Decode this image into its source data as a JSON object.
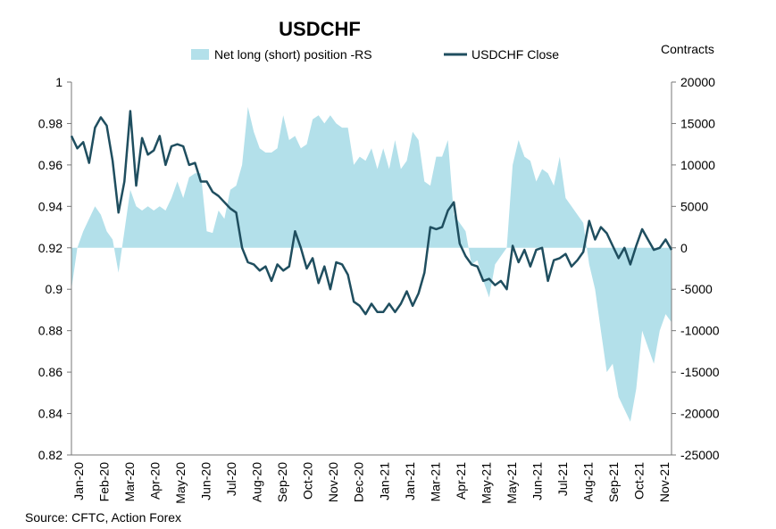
{
  "chart_data": {
    "type": "area+line",
    "title": "USDCHF",
    "right_axis_title": "Contracts",
    "source": "Source: CFTC, Action Forex",
    "legend": {
      "placement": "top",
      "items": [
        {
          "label": "Net long (short) position -RS",
          "type": "area",
          "color": "#b3e0ea"
        },
        {
          "label": "USDCHF Close",
          "type": "line",
          "color": "#1f4e5f"
        }
      ]
    },
    "left_axis": {
      "min": 0.82,
      "max": 1,
      "ticks": [
        "0.82",
        "0.84",
        "0.86",
        "0.88",
        "0.9",
        "0.92",
        "0.94",
        "0.96",
        "0.98",
        "1"
      ]
    },
    "right_axis": {
      "min": -25000,
      "max": 20000,
      "ticks": [
        "-25000",
        "-20000",
        "-15000",
        "-10000",
        "-5000",
        "0",
        "5000",
        "10000",
        "15000",
        "20000"
      ]
    },
    "x_labels": [
      "Jan-20",
      "Feb-20",
      "Mar-20",
      "Apr-20",
      "May-20",
      "Jun-20",
      "Jul-20",
      "Aug-20",
      "Sep-20",
      "Oct-20",
      "Nov-20",
      "Dec-20",
      "Jan-21",
      "Jan-21",
      "Mar-21",
      "Apr-21",
      "May-21",
      "May-21",
      "Jun-21",
      "Jul-21",
      "Aug-21",
      "Sep-21",
      "Oct-21",
      "Nov-21"
    ],
    "series": [
      {
        "name": "USDCHF Close",
        "axis": "left",
        "values": [
          0.974,
          0.968,
          0.971,
          0.961,
          0.978,
          0.983,
          0.979,
          0.962,
          0.937,
          0.952,
          0.986,
          0.95,
          0.973,
          0.965,
          0.967,
          0.974,
          0.96,
          0.969,
          0.97,
          0.969,
          0.96,
          0.961,
          0.952,
          0.952,
          0.947,
          0.945,
          0.942,
          0.939,
          0.937,
          0.92,
          0.913,
          0.912,
          0.909,
          0.911,
          0.904,
          0.912,
          0.909,
          0.911,
          0.928,
          0.92,
          0.91,
          0.915,
          0.903,
          0.911,
          0.9,
          0.913,
          0.912,
          0.907,
          0.894,
          0.892,
          0.888,
          0.893,
          0.889,
          0.889,
          0.893,
          0.889,
          0.893,
          0.899,
          0.892,
          0.898,
          0.908,
          0.93,
          0.929,
          0.93,
          0.938,
          0.942,
          0.922,
          0.916,
          0.912,
          0.911,
          0.904,
          0.905,
          0.902,
          0.904,
          0.9,
          0.921,
          0.913,
          0.919,
          0.911,
          0.919,
          0.92,
          0.904,
          0.914,
          0.915,
          0.917,
          0.911,
          0.914,
          0.918,
          0.933,
          0.924,
          0.93,
          0.927,
          0.921,
          0.915,
          0.92,
          0.912,
          0.921,
          0.929,
          0.924,
          0.919,
          0.92,
          0.924,
          0.919
        ],
        "color": "#1f4e5f"
      },
      {
        "name": "Net long (short) position -RS",
        "axis": "right",
        "values": [
          -5000,
          0,
          2000,
          3500,
          5000,
          4000,
          2000,
          1000,
          -3000,
          2000,
          7000,
          5000,
          4500,
          5000,
          4500,
          5000,
          4500,
          6000,
          8000,
          6000,
          8500,
          9000,
          9000,
          2000,
          1800,
          4500,
          3500,
          7000,
          7500,
          10000,
          17000,
          14000,
          12000,
          11500,
          11500,
          12000,
          16000,
          13000,
          13500,
          12000,
          12500,
          15500,
          16000,
          15000,
          16000,
          15000,
          14500,
          14500,
          10000,
          11000,
          10500,
          12000,
          9500,
          12000,
          9500,
          13000,
          9500,
          10500,
          14000,
          13000,
          8000,
          7500,
          11000,
          11000,
          13000,
          4000,
          3000,
          2000,
          -2000,
          -1500,
          -4000,
          -6000,
          -2000,
          -1000,
          0,
          10000,
          13000,
          11000,
          10500,
          8000,
          9500,
          9000,
          7500,
          11000,
          6000,
          5000,
          4000,
          3000,
          -2000,
          -5000,
          -10000,
          -15000,
          -14000,
          -18000,
          -19500,
          -21000,
          -17000,
          -10000,
          -12000,
          -14000,
          -10000,
          -8000,
          -9000
        ],
        "color": "#b3e0ea"
      }
    ]
  }
}
